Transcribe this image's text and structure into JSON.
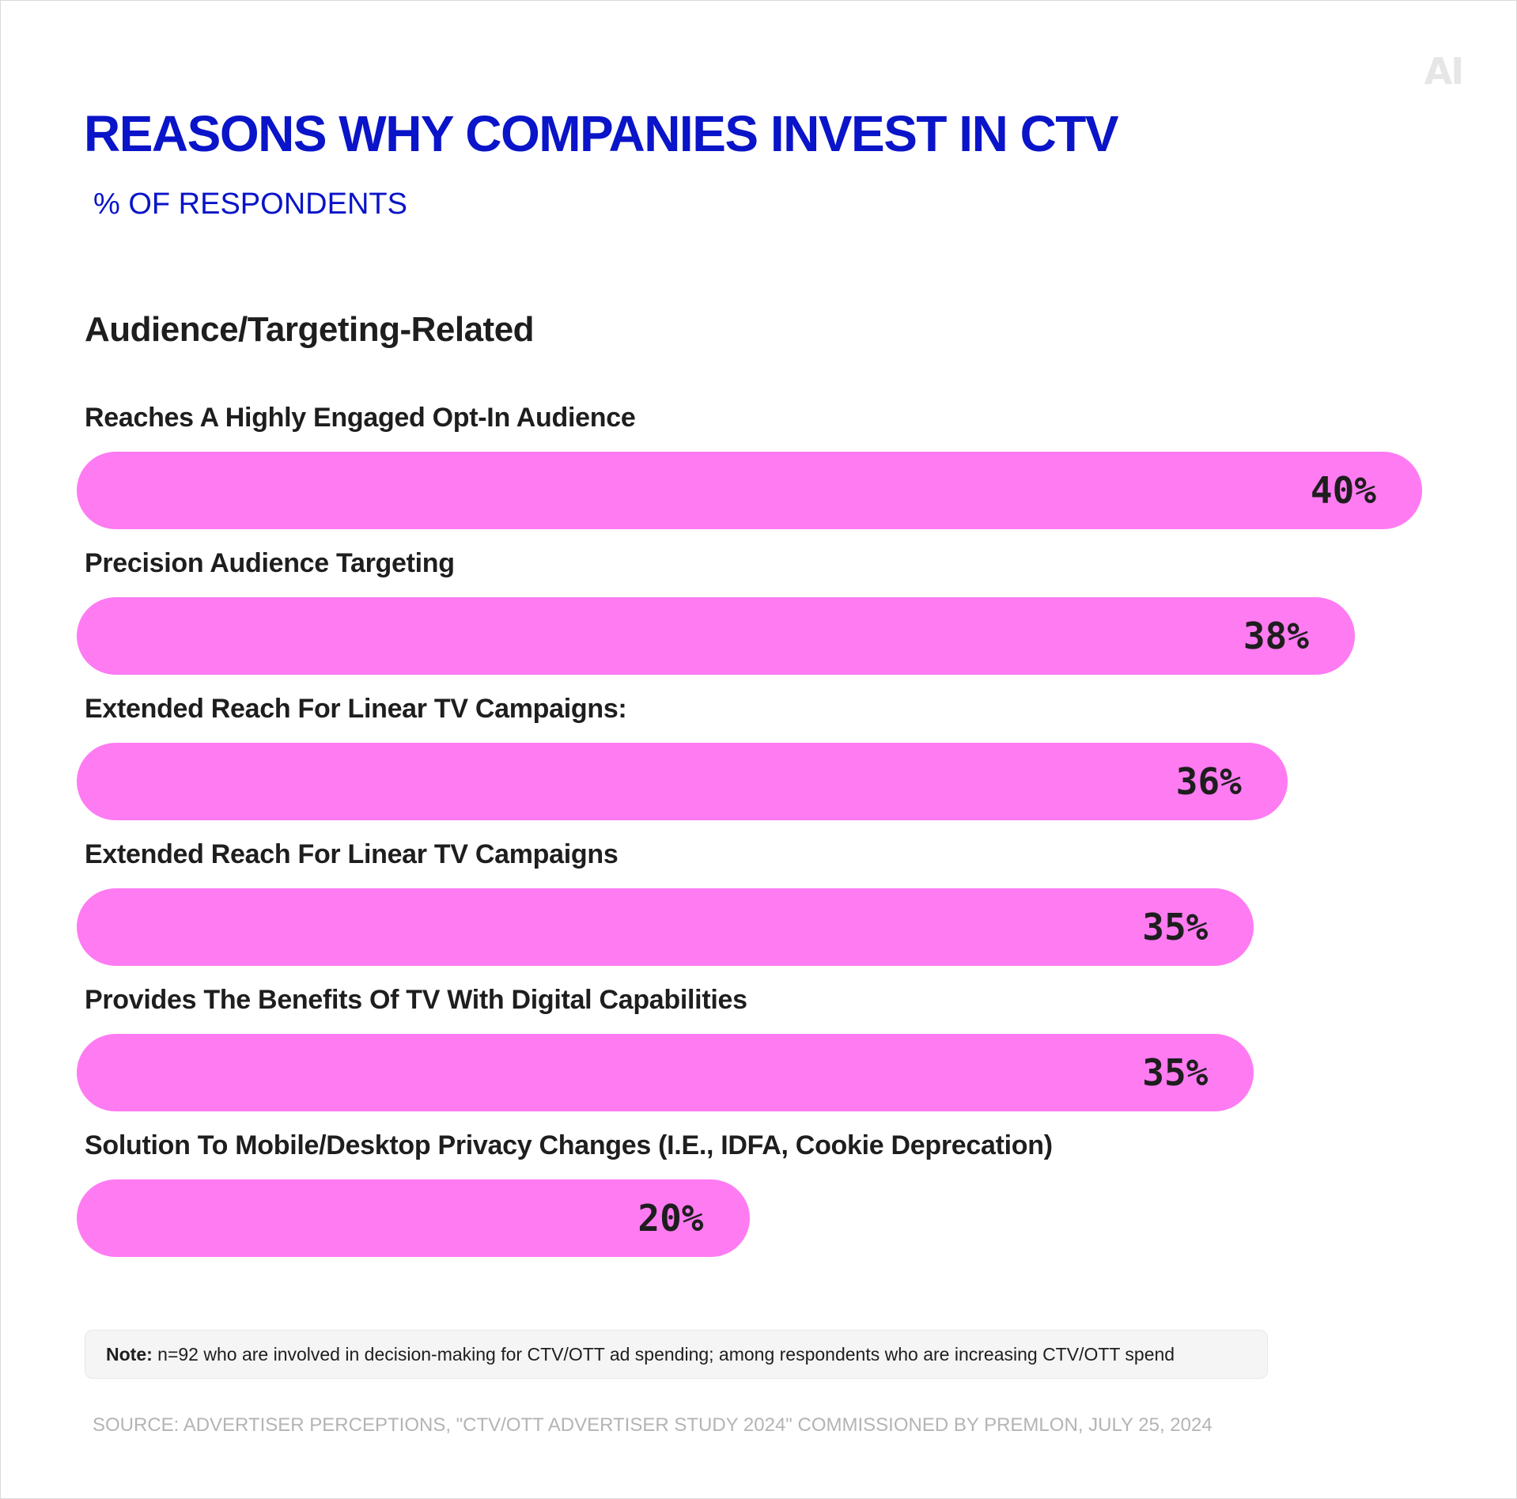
{
  "brand": {
    "logo_text": "AI"
  },
  "colors": {
    "title": "#0a14c8",
    "bar": "#ff7bf2",
    "text": "#1e1e1e",
    "source": "#b4b4b4"
  },
  "chart_data": {
    "type": "bar",
    "orientation": "horizontal",
    "title": "REASONS WHY COMPANIES INVEST IN CTV",
    "subtitle": "% OF RESPONDENTS",
    "section": "Audience/Targeting-Related",
    "unit": "%",
    "xlim": [
      0,
      40
    ],
    "categories": [
      "Reaches A Highly Engaged Opt-In Audience",
      "Precision Audience Targeting",
      "Extended Reach For Linear TV Campaigns:",
      "Extended Reach For Linear TV Campaigns",
      "Provides The Benefits Of TV With Digital Capabilities",
      "Solution To Mobile/Desktop Privacy Changes (I.E., IDFA, Cookie Deprecation)"
    ],
    "values": [
      40,
      38,
      36,
      35,
      35,
      20
    ],
    "value_labels": [
      "40%",
      "38%",
      "36%",
      "35%",
      "35%",
      "20%"
    ],
    "grid": false,
    "legend": "none"
  },
  "note": {
    "label": "Note:",
    "text": " n=92 who are involved in decision-making for CTV/OTT ad spending; among respondents who are increasing CTV/OTT spend"
  },
  "source": "SOURCE: ADVERTISER PERCEPTIONS, \"CTV/OTT ADVERTISER STUDY 2024\" COMMISSIONED BY PREMLON, JULY 25, 2024"
}
